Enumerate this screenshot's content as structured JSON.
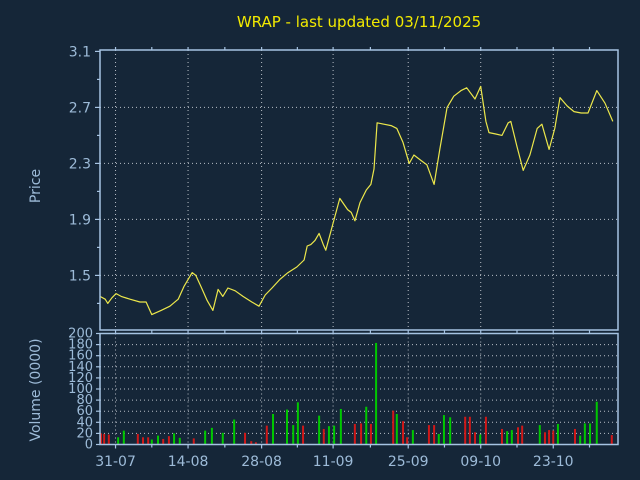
{
  "title": "WRAP - last updated 03/11/2025",
  "colors": {
    "background": "#152638",
    "axis_border": "#a6c3e2",
    "tick_text": "#9dbbd8",
    "grid_dotted": "#b9bfc7",
    "title_text": "#f2ea00",
    "price_line": "#ece74b",
    "volume_up": "#00c800",
    "volume_down": "#d01818"
  },
  "chart_data": [
    {
      "type": "line",
      "panel": "price",
      "title": "WRAP - last updated 03/11/2025",
      "ylabel": "Price",
      "ylim": [
        1.11,
        3.11
      ],
      "yticks": [
        1.5,
        1.9,
        2.3,
        2.7,
        3.1
      ],
      "yticks_minor": [
        1.3,
        1.7,
        2.1,
        2.5,
        2.9
      ],
      "grid": true,
      "legend": "none",
      "x_tick_labels": [
        "31-07",
        "14-08",
        "28-08",
        "11-09",
        "25-09",
        "09-10",
        "23-10"
      ],
      "x_tick_pos": [
        0.03,
        0.17,
        0.312,
        0.45,
        0.595,
        0.735,
        0.875
      ],
      "x_tick_minor_pos": [
        0.1,
        0.241,
        0.381,
        0.522,
        0.665,
        0.805,
        0.945
      ],
      "series": [
        {
          "name": "price",
          "x": [
            0.0,
            0.01,
            0.015,
            0.023,
            0.031,
            0.041,
            0.058,
            0.077,
            0.089,
            0.1,
            0.118,
            0.135,
            0.151,
            0.162,
            0.178,
            0.185,
            0.195,
            0.207,
            0.218,
            0.228,
            0.237,
            0.247,
            0.261,
            0.276,
            0.293,
            0.307,
            0.319,
            0.332,
            0.347,
            0.363,
            0.38,
            0.394,
            0.4,
            0.407,
            0.415,
            0.423,
            0.431,
            0.436,
            0.452,
            0.463,
            0.478,
            0.485,
            0.492,
            0.502,
            0.514,
            0.523,
            0.529,
            0.535,
            0.548,
            0.562,
            0.573,
            0.585,
            0.597,
            0.606,
            0.62,
            0.631,
            0.645,
            0.656,
            0.67,
            0.683,
            0.697,
            0.708,
            0.724,
            0.735,
            0.745,
            0.751,
            0.764,
            0.776,
            0.788,
            0.793,
            0.805,
            0.817,
            0.83,
            0.844,
            0.853,
            0.867,
            0.878,
            0.888,
            0.902,
            0.915,
            0.929,
            0.942,
            0.959,
            0.975,
            0.99
          ],
          "y": [
            1.35,
            1.33,
            1.3,
            1.34,
            1.37,
            1.35,
            1.33,
            1.31,
            1.31,
            1.22,
            1.25,
            1.28,
            1.33,
            1.42,
            1.52,
            1.5,
            1.42,
            1.32,
            1.25,
            1.4,
            1.35,
            1.41,
            1.39,
            1.35,
            1.31,
            1.28,
            1.36,
            1.41,
            1.47,
            1.52,
            1.56,
            1.61,
            1.71,
            1.72,
            1.75,
            1.8,
            1.72,
            1.68,
            1.9,
            2.05,
            1.97,
            1.95,
            1.89,
            2.02,
            2.11,
            2.15,
            2.26,
            2.59,
            2.58,
            2.57,
            2.55,
            2.45,
            2.3,
            2.36,
            2.32,
            2.29,
            2.15,
            2.4,
            2.7,
            2.78,
            2.82,
            2.84,
            2.76,
            2.85,
            2.6,
            2.52,
            2.51,
            2.5,
            2.59,
            2.6,
            2.42,
            2.25,
            2.36,
            2.55,
            2.58,
            2.4,
            2.55,
            2.77,
            2.71,
            2.67,
            2.66,
            2.66,
            2.82,
            2.73,
            2.6
          ]
        }
      ]
    },
    {
      "type": "bar",
      "panel": "volume",
      "ylabel": "Volume (0000)",
      "ylim": [
        0,
        200
      ],
      "yticks": [
        0,
        20,
        40,
        60,
        80,
        100,
        120,
        140,
        160,
        180,
        200
      ],
      "grid": true,
      "bar_colors": {
        "up": "#00c800",
        "down": "#d01818"
      },
      "bars": [
        [
          0.002,
          20,
          "d"
        ],
        [
          0.008,
          19,
          "d"
        ],
        [
          0.017,
          18,
          "d"
        ],
        [
          0.035,
          13,
          "u"
        ],
        [
          0.046,
          25,
          "u"
        ],
        [
          0.073,
          19,
          "d"
        ],
        [
          0.083,
          13,
          "d"
        ],
        [
          0.093,
          13,
          "d"
        ],
        [
          0.1,
          9,
          "u"
        ],
        [
          0.112,
          16,
          "u"
        ],
        [
          0.122,
          10,
          "d"
        ],
        [
          0.133,
          15,
          "d"
        ],
        [
          0.143,
          20,
          "u"
        ],
        [
          0.154,
          12,
          "u"
        ],
        [
          0.181,
          11,
          "d"
        ],
        [
          0.203,
          25,
          "u"
        ],
        [
          0.216,
          30,
          "u"
        ],
        [
          0.237,
          21,
          "u"
        ],
        [
          0.259,
          45,
          "u"
        ],
        [
          0.28,
          21,
          "d"
        ],
        [
          0.292,
          6,
          "d"
        ],
        [
          0.301,
          4,
          "d"
        ],
        [
          0.322,
          34,
          "d"
        ],
        [
          0.334,
          55,
          "u"
        ],
        [
          0.361,
          63,
          "u"
        ],
        [
          0.373,
          35,
          "u"
        ],
        [
          0.382,
          76,
          "u"
        ],
        [
          0.392,
          34,
          "d"
        ],
        [
          0.423,
          52,
          "u"
        ],
        [
          0.432,
          28,
          "d"
        ],
        [
          0.442,
          33,
          "u"
        ],
        [
          0.452,
          34,
          "u"
        ],
        [
          0.465,
          64,
          "u"
        ],
        [
          0.492,
          37,
          "d"
        ],
        [
          0.504,
          38,
          "d"
        ],
        [
          0.514,
          68,
          "u"
        ],
        [
          0.523,
          37,
          "d"
        ],
        [
          0.533,
          183,
          "u"
        ],
        [
          0.566,
          61,
          "d"
        ],
        [
          0.573,
          55,
          "u"
        ],
        [
          0.585,
          42,
          "d"
        ],
        [
          0.593,
          13,
          "d"
        ],
        [
          0.604,
          26,
          "u"
        ],
        [
          0.635,
          35,
          "d"
        ],
        [
          0.645,
          35,
          "d"
        ],
        [
          0.654,
          19,
          "u"
        ],
        [
          0.664,
          53,
          "u"
        ],
        [
          0.676,
          49,
          "u"
        ],
        [
          0.705,
          50,
          "d"
        ],
        [
          0.714,
          50,
          "d"
        ],
        [
          0.724,
          22,
          "d"
        ],
        [
          0.734,
          18,
          "u"
        ],
        [
          0.745,
          50,
          "d"
        ],
        [
          0.776,
          28,
          "d"
        ],
        [
          0.786,
          24,
          "u"
        ],
        [
          0.795,
          26,
          "u"
        ],
        [
          0.807,
          31,
          "d"
        ],
        [
          0.815,
          34,
          "d"
        ],
        [
          0.849,
          35,
          "u"
        ],
        [
          0.859,
          22,
          "d"
        ],
        [
          0.867,
          26,
          "d"
        ],
        [
          0.875,
          25,
          "d"
        ],
        [
          0.884,
          37,
          "u"
        ],
        [
          0.917,
          28,
          "d"
        ],
        [
          0.927,
          16,
          "u"
        ],
        [
          0.936,
          38,
          "u"
        ],
        [
          0.946,
          38,
          "u"
        ],
        [
          0.959,
          77,
          "u"
        ],
        [
          0.988,
          17,
          "d"
        ]
      ]
    }
  ]
}
